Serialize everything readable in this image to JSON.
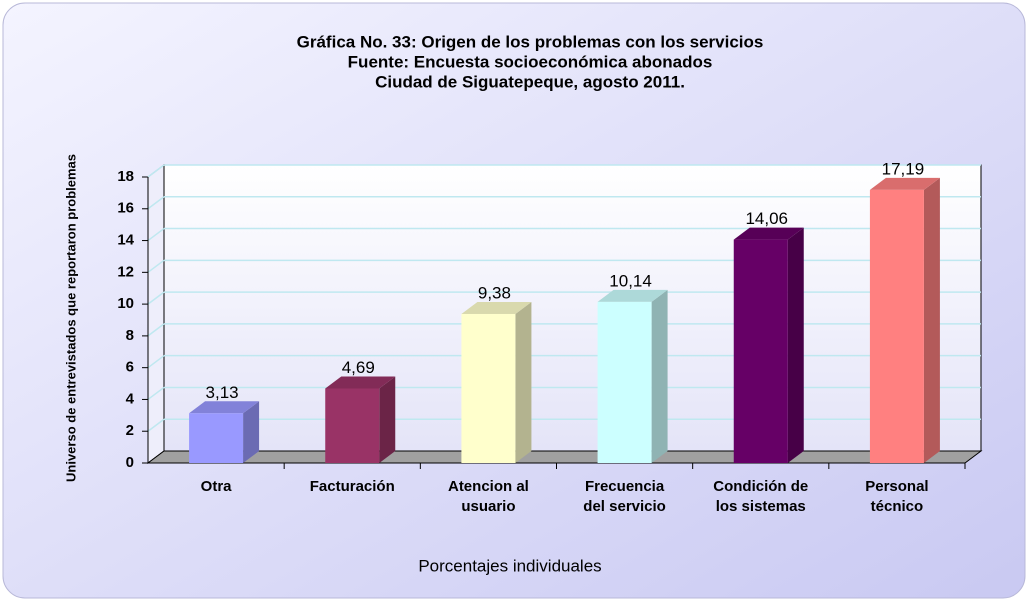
{
  "chart_data": {
    "type": "bar3d",
    "title": "Gráfica No. 33: Origen de los problemas con los servicios",
    "subtitle": [
      "Fuente: Encuesta socioeconómica abonados",
      "Ciudad de Siguatepeque, agosto 2011."
    ],
    "y_label": "Universo de entrevistados que reportaron problemas",
    "x_label": "Porcentajes individuales",
    "categories": [
      [
        "Otra"
      ],
      [
        "Facturación"
      ],
      [
        "Atencion al",
        "usuario"
      ],
      [
        "Frecuencia",
        "del servicio"
      ],
      [
        "Condición de",
        "los sistemas"
      ],
      [
        "Personal",
        "técnico"
      ]
    ],
    "values": [
      3.13,
      4.69,
      9.38,
      10.14,
      14.06,
      17.19
    ],
    "value_labels": [
      "3,13",
      "4,69",
      "9,38",
      "10,14",
      "14,06",
      "17,19"
    ],
    "colors": [
      "#9999ff",
      "#993366",
      "#ffffcc",
      "#ccffff",
      "#660066",
      "#ff8080"
    ],
    "ylim": [
      0,
      18
    ],
    "yticks": [
      0,
      2,
      4,
      6,
      8,
      10,
      12,
      14,
      16,
      18
    ],
    "grid": true
  }
}
